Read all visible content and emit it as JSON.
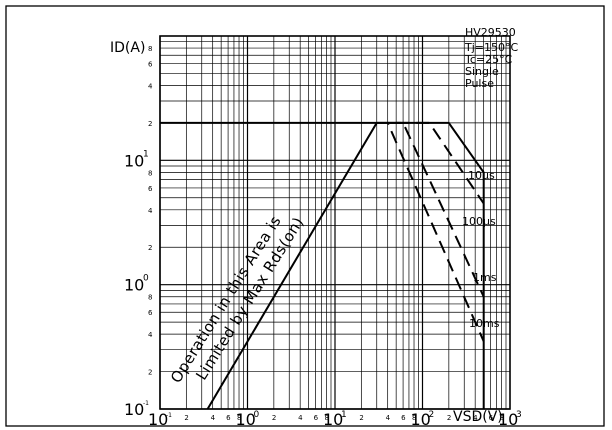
{
  "figure_id": "HV29530",
  "conditions": [
    "Tj=150°C",
    "Tc=25°C",
    "Single",
    "Pulse"
  ],
  "region_note": [
    "Operation in this Area is",
    "Limited by Max Rds(on)"
  ],
  "chart_data": {
    "type": "line",
    "title": "",
    "xlabel": "VSD(V)",
    "ylabel": "ID(A)",
    "xscale": "log",
    "yscale": "log",
    "xlim": [
      0.1,
      1000
    ],
    "ylim": [
      0.1,
      100
    ],
    "grid": true,
    "x_tick_labels": [
      "10-1",
      "100",
      "101",
      "102",
      "103"
    ],
    "y_tick_labels": [
      "10-1",
      "100",
      "101"
    ],
    "x_minor_tick_labels": [
      "2",
      "4",
      "6",
      "8"
    ],
    "y_minor_tick_labels": [
      "2",
      "4",
      "6",
      "8"
    ],
    "rds_on_limit": {
      "name": "Rds(on) limit",
      "style": "solid",
      "points": [
        [
          0.35,
          0.1
        ],
        [
          30,
          20
        ]
      ]
    },
    "current_limit": {
      "name": "ID max",
      "style": "solid",
      "value": 20,
      "x_range": [
        0.1,
        100
      ]
    },
    "series": [
      {
        "name": "10μs",
        "style": "solid",
        "points": [
          [
            100,
            20
          ],
          [
            200,
            20
          ],
          [
            500,
            8
          ],
          [
            500,
            0.1
          ]
        ]
      },
      {
        "name": "100μs",
        "style": "dashed",
        "points": [
          [
            50,
            20
          ],
          [
            120,
            20
          ],
          [
            500,
            4.5
          ]
        ]
      },
      {
        "name": "1ms",
        "style": "dashed",
        "points": [
          [
            40,
            20
          ],
          [
            60,
            20
          ],
          [
            500,
            0.8
          ]
        ]
      },
      {
        "name": "10ms",
        "style": "dashed",
        "points": [
          [
            30,
            20
          ],
          [
            40,
            20
          ],
          [
            500,
            0.35
          ]
        ]
      }
    ]
  }
}
